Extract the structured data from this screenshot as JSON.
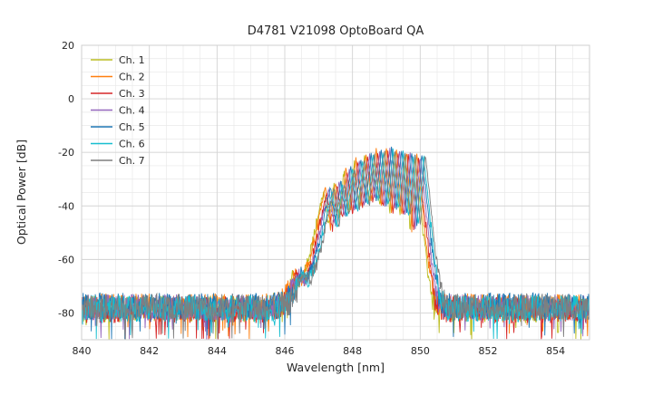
{
  "figure": {
    "title": "D4781 V21098 OptoBoard QA"
  },
  "chart_data": {
    "type": "line",
    "title": "D4781 V21098 OptoBoard QA",
    "xlabel": "Wavelength [nm]",
    "ylabel": "Optical Power [dB]",
    "xlim": [
      840,
      855
    ],
    "ylim": [
      -90,
      20
    ],
    "xticks": [
      840,
      842,
      844,
      846,
      848,
      850,
      852,
      854
    ],
    "yticks": [
      20,
      0,
      -20,
      -40,
      -60,
      -80
    ],
    "x_minor_step": 0.5,
    "y_minor_step": 5,
    "grid": true,
    "legend_position": "upper-left",
    "noise_floor_db": -78,
    "peak_power_db": -18,
    "envelope": [
      [
        840.0,
        -78
      ],
      [
        845.6,
        -78
      ],
      [
        846.0,
        -76
      ],
      [
        846.2,
        -72
      ],
      [
        846.4,
        -65
      ],
      [
        846.6,
        -68
      ],
      [
        846.8,
        -62
      ],
      [
        847.0,
        -52
      ],
      [
        847.15,
        -42
      ],
      [
        847.3,
        -34
      ],
      [
        847.45,
        -48
      ],
      [
        847.6,
        -31
      ],
      [
        847.75,
        -44
      ],
      [
        847.9,
        -26
      ],
      [
        848.05,
        -42
      ],
      [
        848.2,
        -23
      ],
      [
        848.35,
        -40
      ],
      [
        848.5,
        -20.5
      ],
      [
        848.65,
        -38
      ],
      [
        848.8,
        -19.5
      ],
      [
        848.95,
        -40
      ],
      [
        849.1,
        -18.5
      ],
      [
        849.25,
        -42
      ],
      [
        849.4,
        -19
      ],
      [
        849.55,
        -44
      ],
      [
        849.7,
        -20
      ],
      [
        849.85,
        -48
      ],
      [
        850.0,
        -21
      ],
      [
        850.2,
        -45
      ],
      [
        850.35,
        -62
      ],
      [
        850.5,
        -74
      ],
      [
        850.7,
        -78
      ],
      [
        855.0,
        -78
      ]
    ],
    "series": [
      {
        "name": "Ch. 1",
        "color": "#bcbd22",
        "dx": -0.15,
        "dy": -0.5,
        "seed": 1
      },
      {
        "name": "Ch. 2",
        "color": "#ff7f0e",
        "dx": -0.1,
        "dy": 0.3,
        "seed": 2
      },
      {
        "name": "Ch. 3",
        "color": "#d62728",
        "dx": -0.05,
        "dy": -0.8,
        "seed": 3
      },
      {
        "name": "Ch. 4",
        "color": "#9467bd",
        "dx": 0.0,
        "dy": 0.0,
        "seed": 4
      },
      {
        "name": "Ch. 5",
        "color": "#1f77b4",
        "dx": 0.05,
        "dy": 0.5,
        "seed": 5
      },
      {
        "name": "Ch. 6",
        "color": "#17becf",
        "dx": 0.1,
        "dy": -0.3,
        "seed": 6
      },
      {
        "name": "Ch. 7",
        "color": "#7f7f7f",
        "dx": 0.15,
        "dy": 0.2,
        "seed": 7
      }
    ],
    "colors": {
      "grid_major": "#d4d4d4",
      "grid_minor": "#e8e8e8",
      "frame": "#cfcfcf",
      "background": "#ffffff"
    }
  }
}
